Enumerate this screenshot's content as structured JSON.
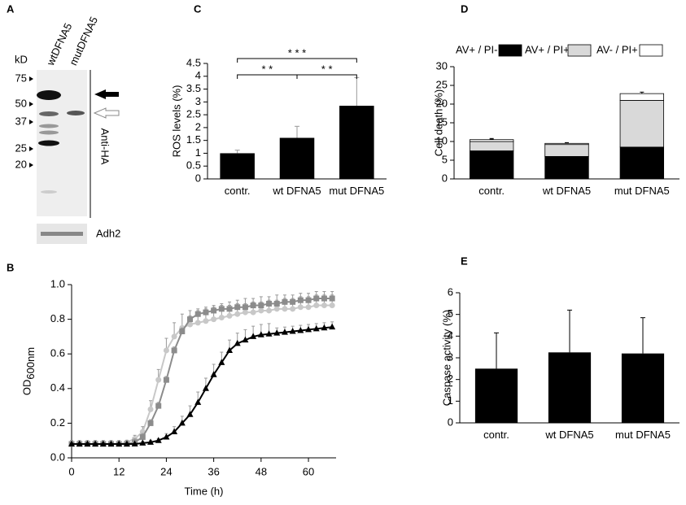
{
  "blot": {
    "panel": "A",
    "header": "kD",
    "lanes": [
      "wtDFNA5",
      "mutDFNA5"
    ],
    "markers": [
      "75",
      "50",
      "37",
      "25",
      "20"
    ],
    "antibody": "Anti-HA",
    "loading": "Adh2"
  },
  "chart_data": [
    {
      "type": "bar",
      "panel": "C",
      "ylabel": "ROS levels (%)",
      "categories": [
        "contr.",
        "wt DFNA5",
        "mut DFNA5"
      ],
      "values": [
        1.0,
        1.6,
        2.85
      ],
      "errors": [
        0.12,
        0.45,
        1.1
      ],
      "color": "#000000",
      "error_color": "#999999",
      "ylim": [
        0,
        4.5
      ],
      "yticks": [
        0,
        0.5,
        1,
        1.5,
        2,
        2.5,
        3,
        3.5,
        4,
        4.5
      ],
      "significance": [
        "* *",
        "* * *",
        "* *"
      ]
    },
    {
      "type": "stacked_bar",
      "panel": "D",
      "ylabel": "Cell death (%)",
      "legend": "top",
      "categories": [
        "contr.",
        "wt DFNA5",
        "mut DFNA5"
      ],
      "series": [
        {
          "name": "AV+ / PI-",
          "color": "#000000",
          "values": [
            7.5,
            6.0,
            8.5
          ],
          "errors": [
            0.2,
            0.3,
            0.2
          ]
        },
        {
          "name": "AV+ / PI+",
          "color": "#d9d9d9",
          "values": [
            2.5,
            3.2,
            12.5
          ],
          "errors": [
            0.6,
            0.3,
            1.0
          ]
        },
        {
          "name": "AV- / PI+",
          "color": "#ffffff",
          "values": [
            0.5,
            0.3,
            1.8
          ],
          "errors": [
            0.3,
            0.2,
            0.4
          ]
        }
      ],
      "ylim": [
        0,
        30
      ],
      "yticks": [
        0,
        5,
        10,
        15,
        20,
        25,
        30
      ]
    },
    {
      "type": "line",
      "panel": "B",
      "xlabel": "Time (h)",
      "ylabel": "OD",
      "ylabel_subscript": "600nm",
      "x": [
        0,
        2,
        4,
        6,
        8,
        10,
        12,
        14,
        16,
        18,
        20,
        22,
        24,
        26,
        28,
        30,
        32,
        34,
        36,
        38,
        40,
        42,
        44,
        46,
        48,
        50,
        52,
        54,
        56,
        58,
        60,
        62,
        64,
        66
      ],
      "series": [
        {
          "color": "#c8c8c8",
          "marker": "circle",
          "values": [
            0.08,
            0.08,
            0.08,
            0.08,
            0.08,
            0.08,
            0.08,
            0.09,
            0.11,
            0.15,
            0.28,
            0.45,
            0.62,
            0.7,
            0.75,
            0.77,
            0.78,
            0.79,
            0.8,
            0.81,
            0.82,
            0.83,
            0.84,
            0.84,
            0.85,
            0.85,
            0.86,
            0.86,
            0.86,
            0.87,
            0.87,
            0.88,
            0.88,
            0.88
          ],
          "errors": [
            0.01,
            0.01,
            0.01,
            0.01,
            0.01,
            0.01,
            0.01,
            0.01,
            0.02,
            0.03,
            0.05,
            0.06,
            0.07,
            0.08,
            0.08,
            0.08,
            0.08,
            0.08,
            0.08,
            0.08,
            0.08,
            0.08,
            0.08,
            0.08,
            0.08,
            0.08,
            0.08,
            0.08,
            0.08,
            0.08,
            0.08,
            0.08,
            0.08,
            0.08
          ]
        },
        {
          "color": "#8c8c8c",
          "marker": "square",
          "values": [
            0.08,
            0.08,
            0.08,
            0.08,
            0.08,
            0.08,
            0.08,
            0.08,
            0.09,
            0.12,
            0.2,
            0.3,
            0.45,
            0.62,
            0.73,
            0.8,
            0.83,
            0.84,
            0.85,
            0.86,
            0.86,
            0.87,
            0.87,
            0.88,
            0.88,
            0.89,
            0.89,
            0.9,
            0.9,
            0.91,
            0.91,
            0.92,
            0.92,
            0.92
          ],
          "errors": [
            0.02,
            0.02,
            0.02,
            0.02,
            0.02,
            0.02,
            0.02,
            0.02,
            0.02,
            0.02,
            0.02,
            0.02,
            0.02,
            0.02,
            0.02,
            0.02,
            0.02,
            0.02,
            0.02,
            0.02,
            0.02,
            0.02,
            0.02,
            0.02,
            0.02,
            0.02,
            0.02,
            0.02,
            0.02,
            0.02,
            0.02,
            0.02,
            0.02,
            0.02
          ]
        },
        {
          "color": "#000000",
          "marker": "triangle",
          "values": [
            0.08,
            0.08,
            0.08,
            0.08,
            0.08,
            0.08,
            0.08,
            0.08,
            0.08,
            0.085,
            0.09,
            0.1,
            0.12,
            0.15,
            0.2,
            0.25,
            0.32,
            0.4,
            0.48,
            0.55,
            0.62,
            0.66,
            0.68,
            0.7,
            0.71,
            0.715,
            0.72,
            0.725,
            0.73,
            0.735,
            0.74,
            0.745,
            0.75,
            0.755
          ],
          "errors": [
            0.01,
            0.01,
            0.01,
            0.01,
            0.01,
            0.01,
            0.01,
            0.01,
            0.01,
            0.01,
            0.01,
            0.01,
            0.02,
            0.03,
            0.04,
            0.05,
            0.06,
            0.06,
            0.06,
            0.06,
            0.06,
            0.06,
            0.06,
            0.06,
            0.06,
            0.06,
            0.03,
            0.03,
            0.03,
            0.03,
            0.03,
            0.03,
            0.03,
            0.03
          ]
        }
      ],
      "xlim": [
        0,
        67
      ],
      "xticks": [
        0,
        12,
        24,
        36,
        48,
        60
      ],
      "ylim": [
        0,
        1
      ],
      "yticks": [
        {
          "value": 0,
          "label": "0.0"
        },
        {
          "value": 0.2,
          "label": "0.2"
        },
        {
          "value": 0.4,
          "label": "0.4"
        },
        {
          "value": 0.6,
          "label": "0.6"
        },
        {
          "value": 0.8,
          "label": "0.8"
        },
        {
          "value": 1,
          "label": "1.0"
        }
      ]
    },
    {
      "type": "bar",
      "panel": "E",
      "ylabel": "Caspase activity (%)",
      "categories": [
        "contr.",
        "wt DFNA5",
        "mut DFNA5"
      ],
      "values": [
        2.5,
        3.25,
        3.2
      ],
      "errors": [
        1.65,
        1.95,
        1.65
      ],
      "color": "#000000",
      "error_color": "#000000",
      "ylim": [
        0,
        6
      ],
      "yticks": [
        0,
        1,
        2,
        3,
        4,
        5,
        6
      ]
    }
  ]
}
